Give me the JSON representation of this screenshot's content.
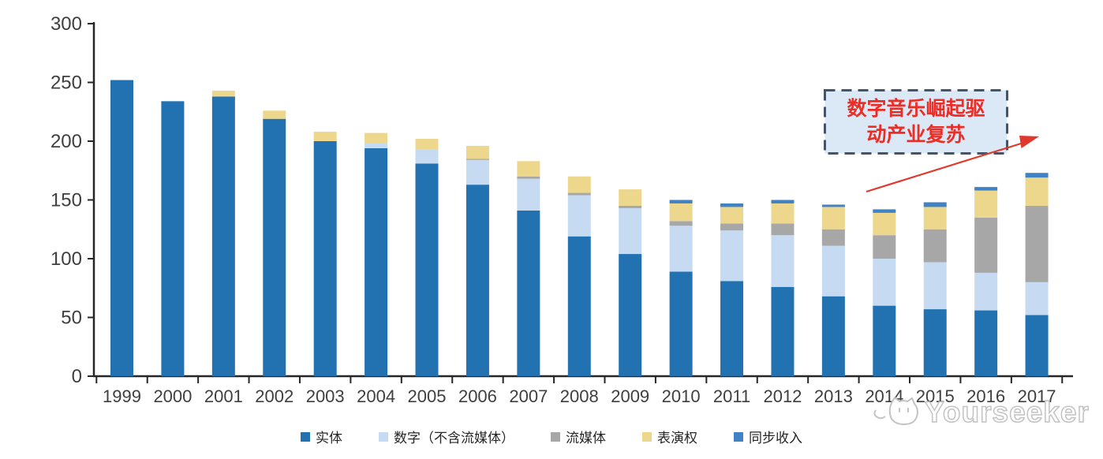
{
  "chart_data": {
    "type": "bar",
    "stacked": true,
    "title": "",
    "xlabel": "",
    "ylabel": "",
    "categories": [
      "1999",
      "2000",
      "2001",
      "2002",
      "2003",
      "2004",
      "2005",
      "2006",
      "2007",
      "2008",
      "2009",
      "2010",
      "2011",
      "2012",
      "2013",
      "2014",
      "2015",
      "2016",
      "2017"
    ],
    "series": [
      {
        "key": "physical",
        "name": "实体",
        "color": "#2272B2",
        "values": [
          252,
          234,
          238,
          219,
          200,
          194,
          181,
          163,
          141,
          119,
          104,
          89,
          81,
          76,
          68,
          60,
          57,
          56,
          52
        ]
      },
      {
        "key": "digital",
        "name": "数字（不含流媒体）",
        "color": "#C6DBF1",
        "values": [
          0,
          0,
          0,
          0,
          0,
          4,
          12,
          21,
          27,
          35,
          39,
          39,
          43,
          44,
          43,
          40,
          40,
          32,
          28
        ]
      },
      {
        "key": "streaming",
        "name": "流媒体",
        "color": "#A7A7A7",
        "values": [
          0,
          0,
          0,
          0,
          0,
          0,
          0,
          1,
          2,
          2,
          2,
          4,
          6,
          10,
          14,
          20,
          28,
          47,
          65
        ]
      },
      {
        "key": "performance",
        "name": "表演权",
        "color": "#EDD78D",
        "values": [
          0,
          0,
          5,
          7,
          8,
          9,
          9,
          11,
          13,
          14,
          14,
          15,
          14,
          17,
          19,
          19,
          19,
          23,
          24
        ]
      },
      {
        "key": "sync",
        "name": "同步收入",
        "color": "#4182C4",
        "values": [
          0,
          0,
          0,
          0,
          0,
          0,
          0,
          0,
          0,
          0,
          0,
          3,
          3,
          3,
          2,
          3,
          4,
          3,
          4
        ]
      }
    ],
    "ylim": [
      0,
      300
    ],
    "yticks": [
      0,
      50,
      100,
      150,
      200,
      250,
      300
    ],
    "grid": false,
    "legend_position": "bottom"
  },
  "annotation": {
    "line1": "数字音乐崛起驱",
    "line2": "动产业复苏",
    "text_color": "#EC2D25",
    "box_fill": "#DBE8F6",
    "box_border": "#44546A",
    "arrow_color": "#E0382C"
  },
  "watermark": {
    "text": "Yourseeker",
    "logo": "cat-logo-icon",
    "color": "#C3C3C3"
  }
}
